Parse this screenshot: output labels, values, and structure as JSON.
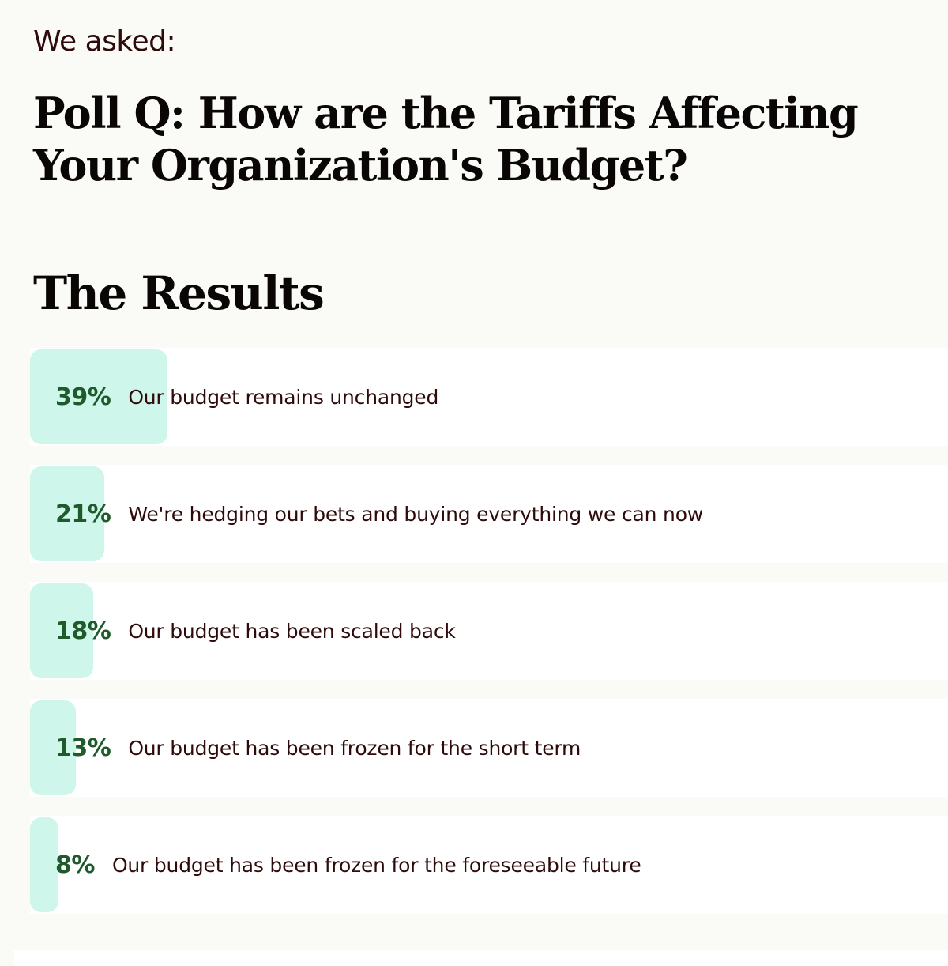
{
  "eyebrow": "We asked:",
  "question": "Poll Q: How are the Tariffs Affecting Your Organization's Budget?",
  "results_heading": "The Results",
  "colors": {
    "bar_fill": "#cef6ea",
    "percent_text": "#1f5a2c",
    "label_text": "#2e0a0a",
    "background": "#fafaf6"
  },
  "results": [
    {
      "percent": "39%",
      "value": 39,
      "label": "Our budget remains unchanged"
    },
    {
      "percent": "21%",
      "value": 21,
      "label": "We're hedging our bets and buying everything we can now"
    },
    {
      "percent": "18%",
      "value": 18,
      "label": "Our budget has been scaled back"
    },
    {
      "percent": "13%",
      "value": 13,
      "label": "Our budget has been frozen for the short term"
    },
    {
      "percent": "8%",
      "value": 8,
      "label": "Our budget has been frozen for the foreseeable future"
    }
  ]
}
